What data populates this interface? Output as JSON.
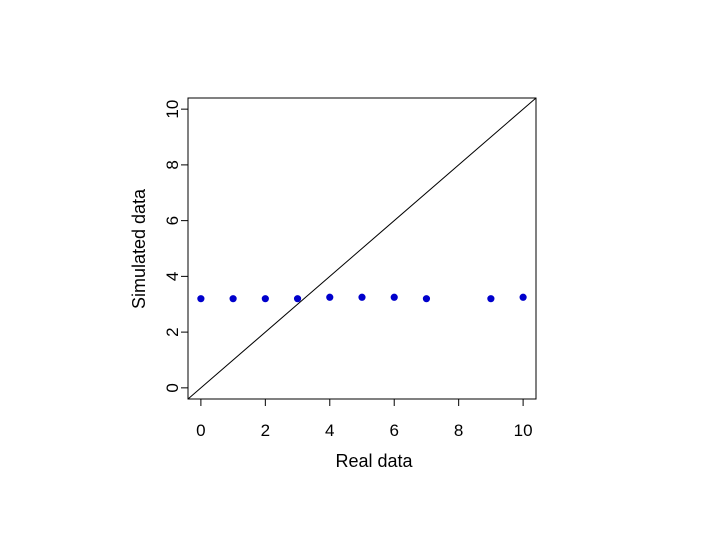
{
  "chart_data": {
    "type": "scatter",
    "title": "",
    "xlabel": "Real data",
    "ylabel": "Simulated data",
    "xlim": [
      -0.4,
      10.4
    ],
    "ylim": [
      -0.4,
      10.4
    ],
    "xticks": [
      0,
      2,
      4,
      6,
      8,
      10
    ],
    "yticks": [
      0,
      2,
      4,
      6,
      8,
      10
    ],
    "xtick_labels": [
      "0",
      "2",
      "4",
      "6",
      "8",
      "10"
    ],
    "ytick_labels": [
      "0",
      "2",
      "4",
      "6",
      "8",
      "10"
    ],
    "grid": false,
    "legend": "none",
    "reference_line": {
      "type": "identity",
      "from": [
        -0.4,
        -0.4
      ],
      "to": [
        10.4,
        10.4
      ],
      "color": "#000000"
    },
    "series": [
      {
        "color": "#0000cc",
        "points": [
          {
            "x": 0,
            "y": 3.2
          },
          {
            "x": 1,
            "y": 3.2
          },
          {
            "x": 2,
            "y": 3.2
          },
          {
            "x": 3,
            "y": 3.2
          },
          {
            "x": 4,
            "y": 3.25
          },
          {
            "x": 5,
            "y": 3.25
          },
          {
            "x": 6,
            "y": 3.25
          },
          {
            "x": 7,
            "y": 3.2
          },
          {
            "x": 9,
            "y": 3.2
          },
          {
            "x": 10,
            "y": 3.25
          }
        ]
      }
    ]
  }
}
